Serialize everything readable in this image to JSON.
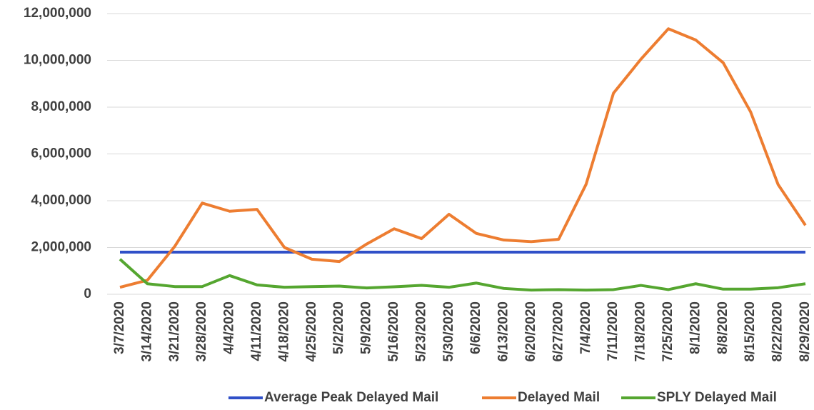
{
  "chart_data": {
    "type": "line",
    "categories": [
      "3/7/2020",
      "3/14/2020",
      "3/21/2020",
      "3/28/2020",
      "4/4/2020",
      "4/11/2020",
      "4/18/2020",
      "4/25/2020",
      "5/2/2020",
      "5/9/2020",
      "5/16/2020",
      "5/23/2020",
      "5/30/2020",
      "6/6/2020",
      "6/13/2020",
      "6/20/2020",
      "6/27/2020",
      "7/4/2020",
      "7/11/2020",
      "7/18/2020",
      "7/25/2020",
      "8/1/2020",
      "8/8/2020",
      "8/15/2020",
      "8/22/2020",
      "8/29/2020"
    ],
    "series": [
      {
        "name": "Average Peak Delayed Mail",
        "color": "#3050c8",
        "values": [
          1800000,
          1800000,
          1800000,
          1800000,
          1800000,
          1800000,
          1800000,
          1800000,
          1800000,
          1800000,
          1800000,
          1800000,
          1800000,
          1800000,
          1800000,
          1800000,
          1800000,
          1800000,
          1800000,
          1800000,
          1800000,
          1800000,
          1800000,
          1800000,
          1800000,
          1800000
        ]
      },
      {
        "name": "Delayed Mail",
        "color": "#ed7d31",
        "values": [
          300000,
          600000,
          2050000,
          3900000,
          3550000,
          3630000,
          2000000,
          1500000,
          1400000,
          2150000,
          2800000,
          2380000,
          3420000,
          2600000,
          2320000,
          2250000,
          2350000,
          4700000,
          8600000,
          10050000,
          11350000,
          10870000,
          9900000,
          7800000,
          4700000,
          2950000
        ]
      },
      {
        "name": "SPLY Delayed Mail",
        "color": "#55a630",
        "values": [
          1500000,
          450000,
          330000,
          330000,
          800000,
          400000,
          300000,
          330000,
          350000,
          270000,
          320000,
          380000,
          300000,
          480000,
          250000,
          180000,
          200000,
          180000,
          200000,
          380000,
          200000,
          450000,
          220000,
          220000,
          280000,
          450000
        ]
      }
    ],
    "ylim": [
      0,
      12000000
    ],
    "yticks": [
      0,
      {
        "value": 2000000,
        "label": "2,000,000"
      },
      {
        "value": 4000000,
        "label": "4,000,000"
      },
      {
        "value": 6000000,
        "label": "6,000,000"
      },
      {
        "value": 8000000,
        "label": "8,000,000"
      },
      {
        "value": 10000000,
        "label": "10,000,000"
      },
      {
        "value": 12000000,
        "label": "12,000,000"
      }
    ],
    "grid": true,
    "legend": "bottom"
  }
}
